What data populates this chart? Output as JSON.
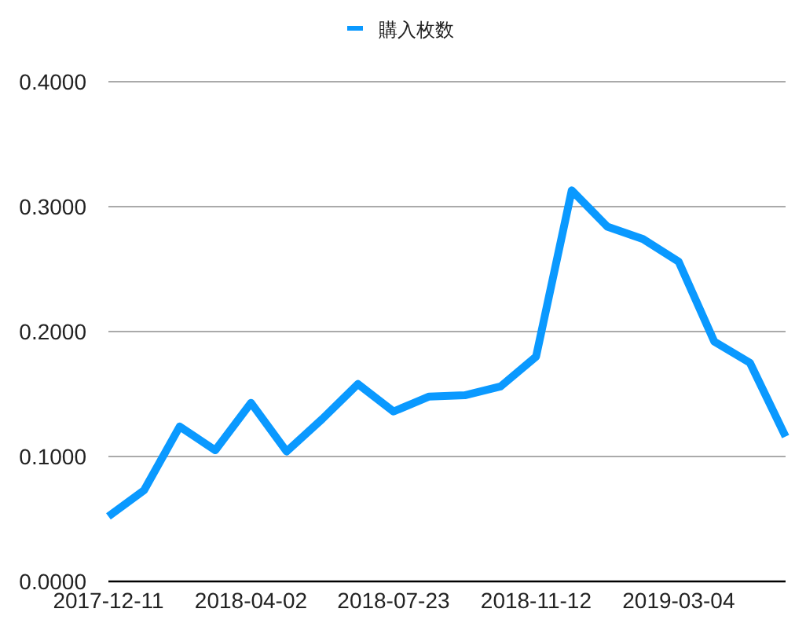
{
  "chart_data": {
    "type": "line",
    "x": [
      "2017-12-11",
      "2018-01-08",
      "2018-02-05",
      "2018-03-05",
      "2018-04-02",
      "2018-04-30",
      "2018-05-28",
      "2018-06-25",
      "2018-07-23",
      "2018-08-20",
      "2018-09-17",
      "2018-10-15",
      "2018-11-12",
      "2018-12-10",
      "2019-01-07",
      "2019-02-04",
      "2019-03-04",
      "2019-04-01",
      "2019-04-29",
      "2019-05-27"
    ],
    "series": [
      {
        "name": "購入枚数",
        "color": "#0a99ff",
        "values": [
          0.052,
          0.073,
          0.124,
          0.105,
          0.143,
          0.104,
          0.13,
          0.158,
          0.136,
          0.148,
          0.149,
          0.156,
          0.18,
          0.313,
          0.284,
          0.274,
          0.256,
          0.192,
          0.175,
          0.116
        ]
      }
    ],
    "xlim": [
      "2017-12-11",
      "2019-05-27"
    ],
    "xticks": [
      "2017-12-11",
      "2018-04-02",
      "2018-07-23",
      "2018-11-12",
      "2019-03-04"
    ],
    "ylim": [
      0,
      0.4
    ],
    "yticks": [
      {
        "value": 0,
        "label": "0.0000"
      },
      {
        "value": 0.1,
        "label": "0.1000"
      },
      {
        "value": 0.2,
        "label": "0.2000"
      },
      {
        "value": 0.3,
        "label": "0.3000"
      },
      {
        "value": 0.4,
        "label": "0.4000"
      }
    ],
    "grid": "y",
    "legend": "top",
    "marker": "none",
    "line_style": "solid"
  }
}
